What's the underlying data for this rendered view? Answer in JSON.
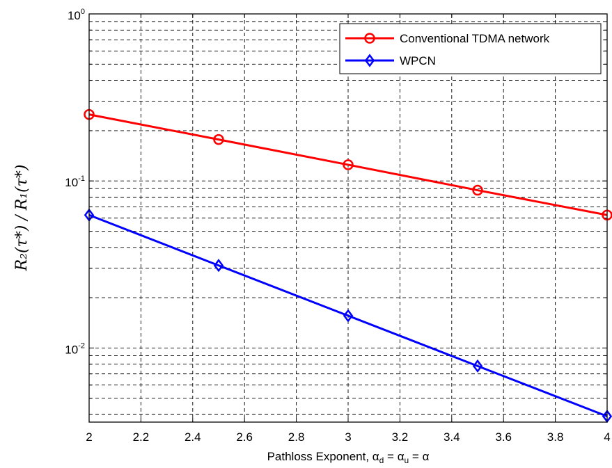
{
  "chart_data": {
    "type": "line",
    "title": "",
    "xlabel": {
      "main": "Pathloss Exponent, ",
      "alpha": "α",
      "sub_d": "d",
      "sub_u": "u",
      "eq": " = "
    },
    "ylabel": "R₂(τ*) / R₁(τ*)",
    "x": [
      2,
      2.5,
      3,
      3.5,
      4
    ],
    "xlim": [
      2,
      4
    ],
    "xticks": [
      2,
      2.2,
      2.4,
      2.6,
      2.8,
      3,
      3.2,
      3.4,
      3.6,
      3.8,
      4
    ],
    "xtick_labels": [
      "2",
      "2.2",
      "2.4",
      "2.6",
      "2.8",
      "3",
      "3.2",
      "3.4",
      "3.6",
      "3.8",
      "4"
    ],
    "yscale": "log",
    "ylim": [
      0.0036,
      1
    ],
    "yticks": [
      {
        "value": 1,
        "base": "10",
        "exp": "0"
      },
      {
        "value": 0.1,
        "base": "10",
        "exp": "-1"
      },
      {
        "value": 0.01,
        "base": "10",
        "exp": "-2"
      }
    ],
    "grid": true,
    "legend_position": "top-right",
    "series": [
      {
        "name": "Conventional TDMA network",
        "color": "#ff0000",
        "marker": "circle",
        "values": [
          0.25,
          0.177,
          0.125,
          0.088,
          0.0625
        ]
      },
      {
        "name": "WPCN",
        "color": "#0000ff",
        "marker": "diamond",
        "values": [
          0.0625,
          0.0312,
          0.0156,
          0.0078,
          0.0039
        ]
      }
    ]
  }
}
